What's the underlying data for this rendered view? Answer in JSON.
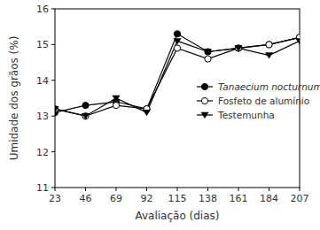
{
  "chart_data": {
    "type": "line",
    "x_label": "Avaliação (dias)",
    "y_label": "Umidade dos grãos (%)",
    "x": [
      23,
      46,
      69,
      92,
      115,
      138,
      161,
      184,
      207
    ],
    "xlim": [
      23,
      207
    ],
    "xticks": [
      23,
      46,
      69,
      92,
      115,
      138,
      161,
      184,
      207
    ],
    "ylim": [
      11,
      16
    ],
    "yticks": [
      11,
      12,
      13,
      14,
      15,
      16
    ],
    "legend": "right",
    "series": [
      {
        "name": "Tanaecium nocturnum",
        "color": "#000000",
        "marker": "circle",
        "values": [
          13.1,
          13.3,
          13.4,
          13.2,
          15.3,
          14.8,
          14.9,
          15.0,
          15.2
        ]
      },
      {
        "name": "Fosfeto de alumínio",
        "color": "#000000",
        "marker": "open-circle",
        "values": [
          13.2,
          13.0,
          13.3,
          13.2,
          14.9,
          14.6,
          14.9,
          15.0,
          15.2
        ]
      },
      {
        "name": "Testemunha",
        "color": "#000000",
        "marker": "triangle-down",
        "values": [
          13.2,
          13.0,
          13.5,
          13.1,
          15.1,
          14.8,
          14.9,
          14.7,
          15.1
        ]
      }
    ]
  }
}
